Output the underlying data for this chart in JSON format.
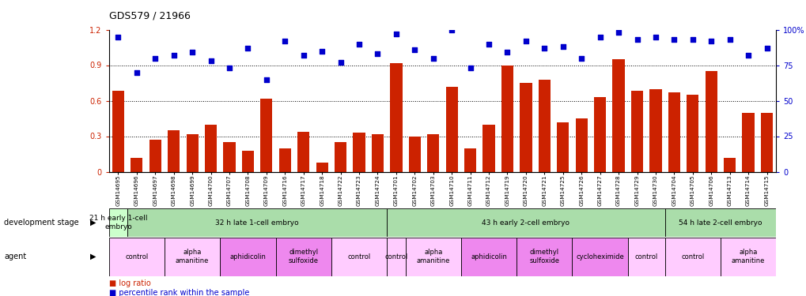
{
  "title": "GDS579 / 21966",
  "samples": [
    "GSM14695",
    "GSM14696",
    "GSM14697",
    "GSM14698",
    "GSM14699",
    "GSM14700",
    "GSM14707",
    "GSM14708",
    "GSM14709",
    "GSM14716",
    "GSM14717",
    "GSM14718",
    "GSM14722",
    "GSM14723",
    "GSM14724",
    "GSM14701",
    "GSM14702",
    "GSM14703",
    "GSM14710",
    "GSM14711",
    "GSM14712",
    "GSM14719",
    "GSM14720",
    "GSM14721",
    "GSM14725",
    "GSM14726",
    "GSM14727",
    "GSM14728",
    "GSM14729",
    "GSM14730",
    "GSM14704",
    "GSM14705",
    "GSM14706",
    "GSM14713",
    "GSM14714",
    "GSM14715"
  ],
  "log_ratio": [
    0.68,
    0.12,
    0.27,
    0.35,
    0.32,
    0.4,
    0.25,
    0.18,
    0.62,
    0.2,
    0.34,
    0.08,
    0.25,
    0.33,
    0.32,
    0.92,
    0.3,
    0.32,
    0.72,
    0.2,
    0.4,
    0.9,
    0.75,
    0.78,
    0.42,
    0.45,
    0.63,
    0.95,
    0.68,
    0.7,
    0.67,
    0.65,
    0.85,
    0.12,
    0.5,
    0.5
  ],
  "percentile": [
    95,
    70,
    80,
    82,
    84,
    78,
    73,
    87,
    65,
    92,
    82,
    85,
    77,
    90,
    83,
    97,
    86,
    80,
    100,
    73,
    90,
    84,
    92,
    87,
    88,
    80,
    95,
    98,
    93,
    95,
    93,
    93,
    92,
    93,
    82,
    87
  ],
  "bar_color": "#cc2200",
  "dot_color": "#0000cc",
  "dev_stages": [
    {
      "text": "21 h early 1-cell\nembryo",
      "start": 0,
      "end": 1,
      "color": "#ccffcc"
    },
    {
      "text": "32 h late 1-cell embryo",
      "start": 1,
      "end": 15,
      "color": "#aaddaa"
    },
    {
      "text": "43 h early 2-cell embryo",
      "start": 15,
      "end": 30,
      "color": "#aaddaa"
    },
    {
      "text": "54 h late 2-cell embryo",
      "start": 30,
      "end": 36,
      "color": "#aaddaa"
    }
  ],
  "agents": [
    {
      "text": "control",
      "start": 0,
      "end": 3,
      "color": "#ffccff"
    },
    {
      "text": "alpha\namanitine",
      "start": 3,
      "end": 6,
      "color": "#ffccff"
    },
    {
      "text": "aphidicolin",
      "start": 6,
      "end": 9,
      "color": "#ee88ee"
    },
    {
      "text": "dimethyl\nsulfoxide",
      "start": 9,
      "end": 12,
      "color": "#ee88ee"
    },
    {
      "text": "control",
      "start": 12,
      "end": 15,
      "color": "#ffccff"
    },
    {
      "text": "control",
      "start": 15,
      "end": 16,
      "color": "#ffccff"
    },
    {
      "text": "alpha\namanitine",
      "start": 16,
      "end": 19,
      "color": "#ffccff"
    },
    {
      "text": "aphidicolin",
      "start": 19,
      "end": 22,
      "color": "#ee88ee"
    },
    {
      "text": "dimethyl\nsulfoxide",
      "start": 22,
      "end": 25,
      "color": "#ee88ee"
    },
    {
      "text": "cycloheximide",
      "start": 25,
      "end": 28,
      "color": "#ee88ee"
    },
    {
      "text": "control",
      "start": 28,
      "end": 30,
      "color": "#ffccff"
    },
    {
      "text": "control",
      "start": 30,
      "end": 33,
      "color": "#ffccff"
    },
    {
      "text": "alpha\namanitine",
      "start": 33,
      "end": 36,
      "color": "#ffccff"
    }
  ],
  "dev_stage_label": "development stage",
  "agent_label": "agent"
}
